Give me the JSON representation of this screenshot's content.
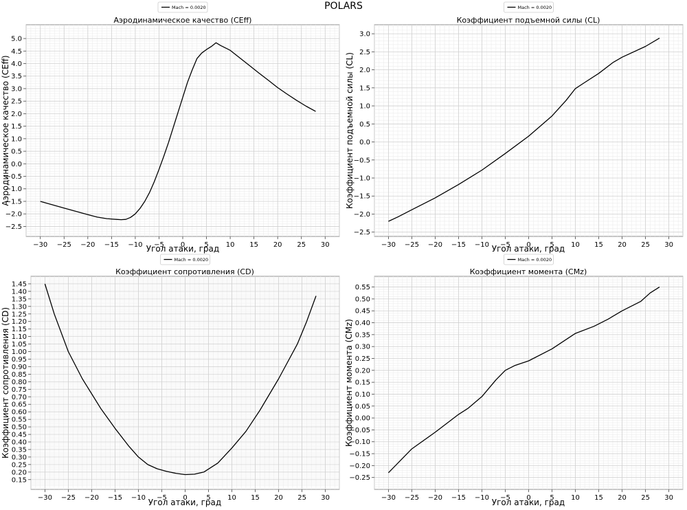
{
  "suptitle": "POLARS",
  "chart_data": [
    {
      "type": "line",
      "title": "Аэродинамическое качество (CEff)",
      "xlabel": "Угол атаки, град",
      "ylabel": "Аэродинамическое качество (CEff)",
      "xlim": [
        -33,
        33
      ],
      "ylim": [
        -2.9,
        5.55
      ],
      "xticks": [
        -30,
        -25,
        -20,
        -15,
        -10,
        -5,
        0,
        5,
        10,
        15,
        20,
        25,
        30
      ],
      "yticks": [
        -2.5,
        -2.0,
        -1.5,
        -1.0,
        -0.5,
        0.0,
        0.5,
        1.0,
        1.5,
        2.0,
        2.5,
        3.0,
        3.5,
        4.0,
        4.5,
        5.0
      ],
      "ytick_decimals": 1,
      "grid": true,
      "legend": "top-center",
      "series": [
        {
          "name": "Mach = 0.0020",
          "color": "#000000",
          "x": [
            -30,
            -25,
            -20,
            -18,
            -16,
            -14,
            -13,
            -12,
            -11,
            -10,
            -9,
            -8,
            -7,
            -6,
            -5,
            -4,
            -3,
            -2,
            -1,
            0,
            1,
            2,
            3,
            4,
            5,
            6,
            7,
            8,
            10,
            12,
            14,
            16,
            18,
            20,
            22,
            24,
            26,
            28
          ],
          "y": [
            -1.5,
            -1.77,
            -2.03,
            -2.13,
            -2.19,
            -2.22,
            -2.23,
            -2.22,
            -2.14,
            -2.0,
            -1.78,
            -1.5,
            -1.15,
            -0.72,
            -0.22,
            0.3,
            0.85,
            1.45,
            2.05,
            2.65,
            3.25,
            3.75,
            4.2,
            4.42,
            4.56,
            4.68,
            4.83,
            4.72,
            4.53,
            4.23,
            3.93,
            3.63,
            3.34,
            3.04,
            2.78,
            2.53,
            2.3,
            2.09
          ]
        }
      ]
    },
    {
      "type": "line",
      "title": "Коэффициент подъемной силы (CL)",
      "xlabel": "Угол атаки, град",
      "ylabel": "Коэффициент подъемной силы (CL)",
      "xlim": [
        -33,
        33
      ],
      "ylim": [
        -2.62,
        3.25
      ],
      "xticks": [
        -30,
        -25,
        -20,
        -15,
        -10,
        -5,
        0,
        5,
        10,
        15,
        20,
        25,
        30
      ],
      "yticks": [
        -2.5,
        -2.0,
        -1.5,
        -1.0,
        -0.5,
        0.0,
        0.5,
        1.0,
        1.5,
        2.0,
        2.5,
        3.0
      ],
      "ytick_decimals": 1,
      "grid": true,
      "legend": "top-center",
      "series": [
        {
          "name": "Mach = 0.0020",
          "color": "#000000",
          "x": [
            -30,
            -28,
            -25,
            -20,
            -15,
            -10,
            -5,
            0,
            5,
            8,
            10,
            12,
            15,
            18,
            20,
            25,
            28
          ],
          "y": [
            -2.2,
            -2.08,
            -1.88,
            -1.55,
            -1.18,
            -0.78,
            -0.32,
            0.16,
            0.72,
            1.15,
            1.48,
            1.65,
            1.9,
            2.2,
            2.35,
            2.65,
            2.88
          ]
        }
      ]
    },
    {
      "type": "line",
      "title": "Коэффициент сопротивления (CD)",
      "xlabel": "Угол атаки, град",
      "ylabel": "Коэффициент сопротивления (CD)",
      "xlim": [
        -33,
        33
      ],
      "ylim": [
        0.085,
        1.5
      ],
      "xticks": [
        -30,
        -25,
        -20,
        -15,
        -10,
        -5,
        0,
        5,
        10,
        15,
        20,
        25,
        30
      ],
      "yticks": [
        0.15,
        0.2,
        0.25,
        0.3,
        0.35,
        0.4,
        0.45,
        0.5,
        0.55,
        0.6,
        0.65,
        0.7,
        0.75,
        0.8,
        0.85,
        0.9,
        0.95,
        1.0,
        1.05,
        1.1,
        1.15,
        1.2,
        1.25,
        1.3,
        1.35,
        1.4,
        1.45
      ],
      "ytick_decimals": 2,
      "grid": true,
      "legend": "top-center",
      "series": [
        {
          "name": "Mach = 0.0020",
          "color": "#000000",
          "x": [
            -30,
            -28,
            -25,
            -22,
            -20,
            -18,
            -15,
            -12,
            -10,
            -8,
            -6,
            -4,
            -2,
            0,
            2,
            4,
            7,
            10,
            13,
            16,
            20,
            24,
            26,
            28
          ],
          "y": [
            1.45,
            1.25,
            1.0,
            0.82,
            0.72,
            0.62,
            0.49,
            0.37,
            0.3,
            0.25,
            0.222,
            0.205,
            0.192,
            0.183,
            0.186,
            0.2,
            0.26,
            0.36,
            0.47,
            0.61,
            0.82,
            1.05,
            1.2,
            1.37
          ]
        }
      ]
    },
    {
      "type": "line",
      "title": "Коэффициент момента (CMz)",
      "xlabel": "Угол атаки, град",
      "ylabel": "Коэффициент момента (CMz)",
      "xlim": [
        -33,
        33
      ],
      "ylim": [
        -0.3,
        0.595
      ],
      "xticks": [
        -30,
        -25,
        -20,
        -15,
        -10,
        -5,
        0,
        5,
        10,
        15,
        20,
        25,
        30
      ],
      "yticks": [
        -0.25,
        -0.2,
        -0.15,
        -0.1,
        -0.05,
        0.0,
        0.05,
        0.1,
        0.15,
        0.2,
        0.25,
        0.3,
        0.35,
        0.4,
        0.45,
        0.5,
        0.55
      ],
      "ytick_decimals": 2,
      "grid": true,
      "legend": "top-center",
      "series": [
        {
          "name": "Mach = 0.0020",
          "color": "#000000",
          "x": [
            -30,
            -28,
            -25,
            -20,
            -15,
            -13,
            -10,
            -7,
            -5,
            -3,
            0,
            5,
            10,
            14,
            17,
            20,
            24,
            26,
            28
          ],
          "y": [
            -0.23,
            -0.19,
            -0.13,
            -0.06,
            0.015,
            0.04,
            0.09,
            0.16,
            0.2,
            0.22,
            0.24,
            0.29,
            0.355,
            0.385,
            0.415,
            0.45,
            0.49,
            0.525,
            0.55
          ]
        }
      ]
    }
  ]
}
